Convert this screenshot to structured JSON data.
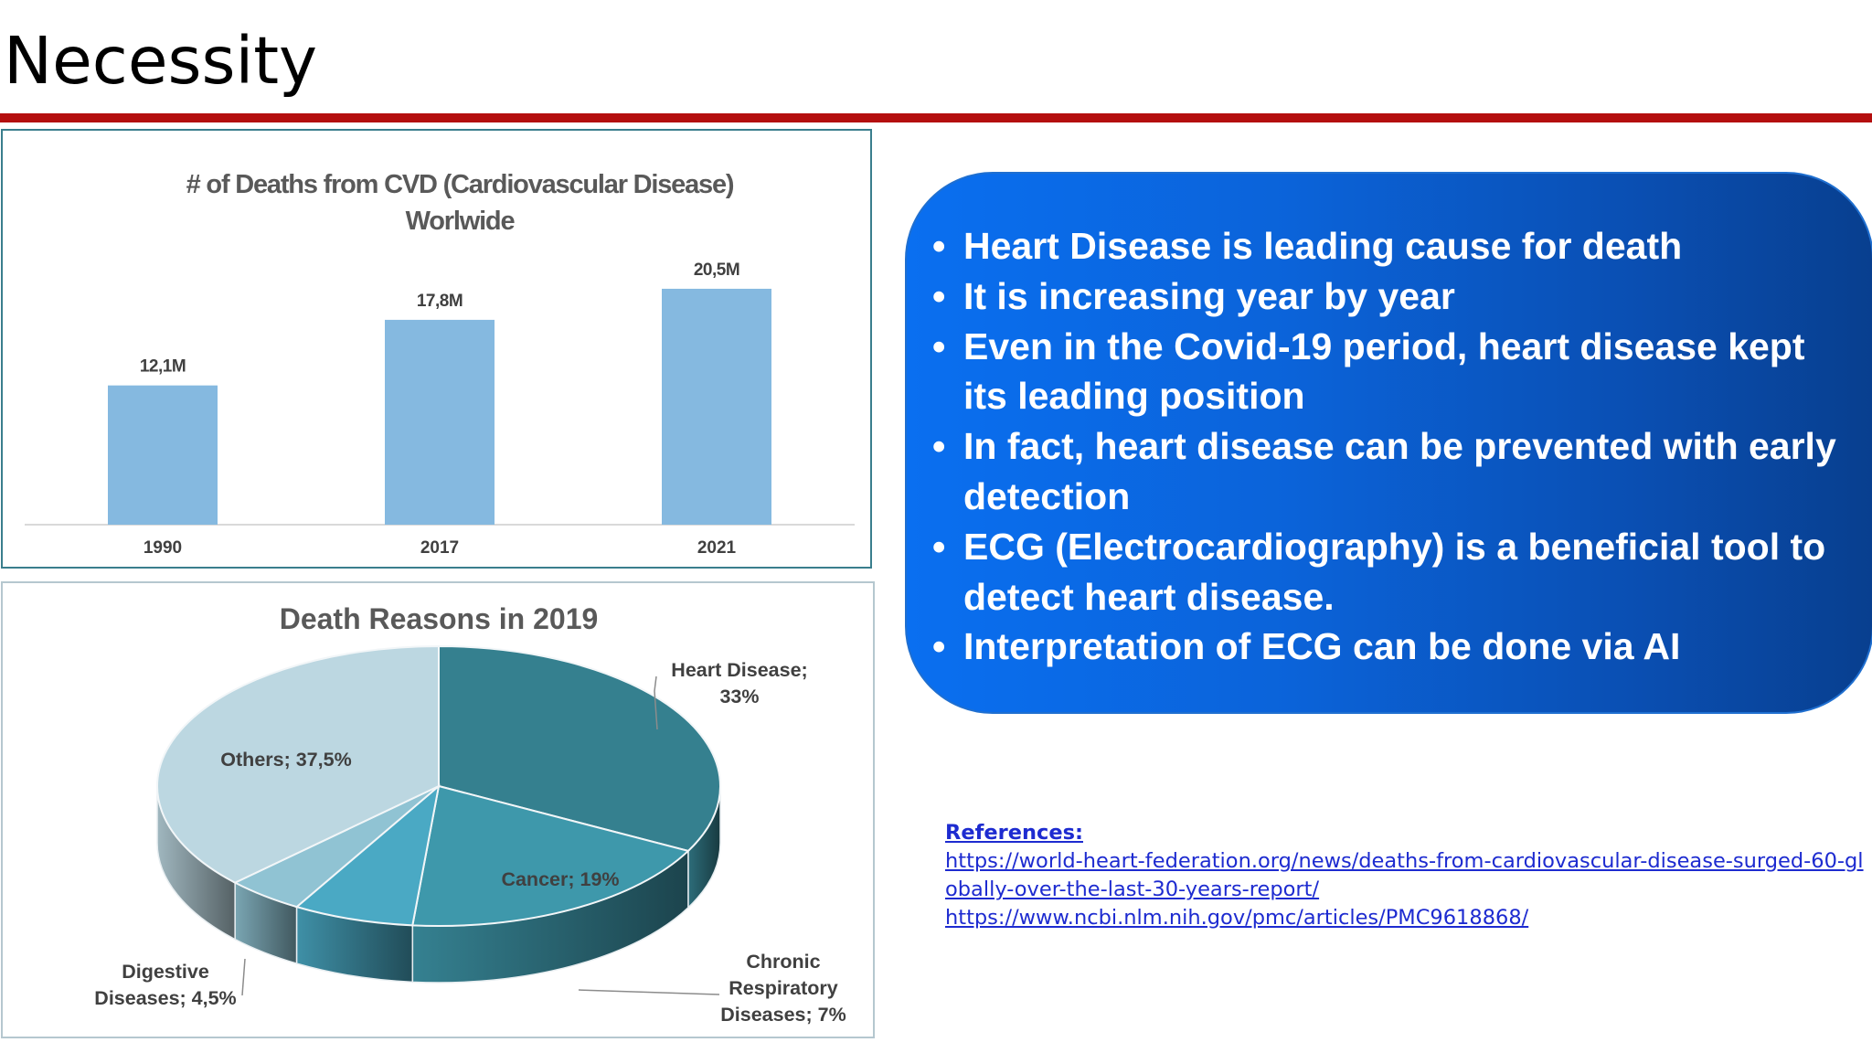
{
  "slide": {
    "title": "Necessity"
  },
  "bullets": [
    "Heart Disease is leading cause for death",
    "It is increasing year by year",
    "Even in the Covid-19 period, heart disease kept its leading position",
    " In fact, heart disease can be prevented with early detection",
    "ECG (Electrocardiography) is a beneficial tool to detect heart disease.",
    "Interpretation of ECG can be done via AI"
  ],
  "references": {
    "heading": "References:",
    "links": [
      "https://world-heart-federation.org/news/deaths-from-cardiovascular-disease-surged-60-globally-over-the-last-30-years-report/",
      "https://www.ncbi.nlm.nih.gov/pmc/articles/PMC9618868/"
    ]
  },
  "chart_data": [
    {
      "type": "bar",
      "title": "# of Deaths from CVD (Cardiovascular Disease) Worlwide",
      "title_lines": [
        "# of Deaths from CVD (Cardiovascular Disease)",
        "Worlwide"
      ],
      "categories": [
        "1990",
        "2017",
        "2021"
      ],
      "values": [
        12.1,
        17.8,
        20.5
      ],
      "data_labels": [
        "12,1M",
        "17,8M",
        "20,5M"
      ],
      "xlabel": "",
      "ylabel": "",
      "ylim": [
        0,
        22.4
      ],
      "grid": false,
      "bar_color": "#85b9e0"
    },
    {
      "type": "pie",
      "title": "Death Reasons in 2019",
      "labels": [
        "Heart Disease",
        "Cancer",
        "Chronic Respiratory Diseases",
        "Digestive Diseases",
        "Others"
      ],
      "values": [
        33,
        19,
        7,
        4.5,
        37.5
      ],
      "data_labels": [
        [
          "Heart Disease;",
          "33%"
        ],
        [
          "Cancer; 19%"
        ],
        [
          "Chronic",
          "Respiratory",
          "Diseases; 7%"
        ],
        [
          "Digestive",
          "Diseases; 4,5%"
        ],
        [
          "Others; 37,5%"
        ]
      ],
      "colors": [
        "#35808f",
        "#3e98ab",
        "#4aa9c4",
        "#90c3d3",
        "#bcd7e1"
      ],
      "style": "3d"
    }
  ]
}
